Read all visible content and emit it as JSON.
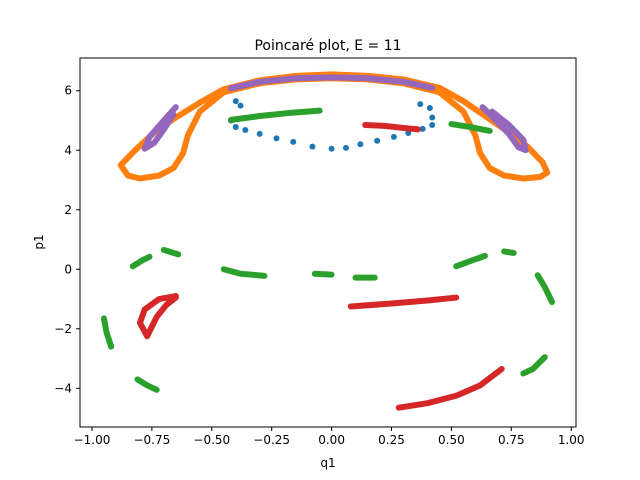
{
  "chart_data": {
    "type": "scatter",
    "title": "Poincaré plot, E = 11",
    "xlabel": "q1",
    "ylabel": "p1",
    "xlim": [
      -1.05,
      1.02
    ],
    "ylim": [
      -5.3,
      7.1
    ],
    "xticks": [
      "−1.00",
      "−0.75",
      "−0.50",
      "−0.25",
      "0.00",
      "0.25",
      "0.50",
      "0.75",
      "1.00"
    ],
    "xtick_values": [
      -1.0,
      -0.75,
      -0.5,
      -0.25,
      0.0,
      0.25,
      0.5,
      0.75,
      1.0
    ],
    "yticks": [
      "−4",
      "−2",
      "0",
      "2",
      "4",
      "6"
    ],
    "ytick_values": [
      -4,
      -2,
      0,
      2,
      4,
      6
    ],
    "grid": false,
    "series": [
      {
        "color": "#1f77b4",
        "points": [
          [
            -0.4,
            5.65
          ],
          [
            -0.38,
            5.5
          ],
          [
            -0.42,
            5.0
          ],
          [
            -0.4,
            4.78
          ],
          [
            -0.36,
            4.68
          ],
          [
            -0.3,
            4.55
          ],
          [
            -0.23,
            4.4
          ],
          [
            -0.16,
            4.28
          ],
          [
            -0.08,
            4.12
          ],
          [
            0.0,
            4.05
          ],
          [
            0.06,
            4.08
          ],
          [
            0.12,
            4.2
          ],
          [
            0.19,
            4.32
          ],
          [
            0.26,
            4.45
          ],
          [
            0.32,
            4.58
          ],
          [
            0.38,
            4.72
          ],
          [
            0.42,
            4.85
          ],
          [
            0.42,
            5.1
          ],
          [
            0.41,
            5.42
          ],
          [
            0.37,
            5.55
          ]
        ]
      },
      {
        "color": "#ff7f0e",
        "outer": [
          [
            -0.85,
            3.15
          ],
          [
            -0.88,
            3.5
          ],
          [
            -0.82,
            4.0
          ],
          [
            -0.74,
            4.6
          ],
          [
            -0.66,
            5.05
          ],
          [
            -0.55,
            5.6
          ],
          [
            -0.45,
            6.05
          ],
          [
            -0.3,
            6.35
          ],
          [
            -0.15,
            6.5
          ],
          [
            0.0,
            6.55
          ],
          [
            0.15,
            6.5
          ],
          [
            0.3,
            6.38
          ],
          [
            0.45,
            6.1
          ],
          [
            0.55,
            5.65
          ],
          [
            0.65,
            5.1
          ],
          [
            0.74,
            4.6
          ],
          [
            0.82,
            4.1
          ],
          [
            0.88,
            3.6
          ],
          [
            0.9,
            3.25
          ],
          [
            0.87,
            3.1
          ],
          [
            0.8,
            3.05
          ],
          [
            0.72,
            3.15
          ],
          [
            0.66,
            3.4
          ],
          [
            0.62,
            3.9
          ],
          [
            0.6,
            4.5
          ],
          [
            0.55,
            5.3
          ],
          [
            0.45,
            5.95
          ],
          [
            0.3,
            6.25
          ],
          [
            0.15,
            6.38
          ],
          [
            0.0,
            6.42
          ],
          [
            -0.15,
            6.38
          ],
          [
            -0.3,
            6.25
          ],
          [
            -0.45,
            5.95
          ],
          [
            -0.55,
            5.3
          ],
          [
            -0.6,
            4.5
          ],
          [
            -0.62,
            3.9
          ],
          [
            -0.66,
            3.4
          ],
          [
            -0.72,
            3.15
          ],
          [
            -0.8,
            3.05
          ],
          [
            -0.85,
            3.15
          ]
        ]
      },
      {
        "color": "#2ca02c",
        "segments": [
          [
            [
              -0.42,
              5.02
            ],
            [
              -0.3,
              5.15
            ],
            [
              -0.18,
              5.25
            ],
            [
              -0.05,
              5.33
            ]
          ],
          [
            [
              0.5,
              4.88
            ],
            [
              0.58,
              4.78
            ],
            [
              0.66,
              4.65
            ]
          ],
          [
            [
              -0.83,
              0.1
            ],
            [
              -0.79,
              0.3
            ],
            [
              -0.76,
              0.42
            ]
          ],
          [
            [
              -0.7,
              0.65
            ],
            [
              -0.66,
              0.55
            ],
            [
              -0.64,
              0.5
            ]
          ],
          [
            [
              -0.45,
              0.0
            ],
            [
              -0.38,
              -0.15
            ],
            [
              -0.28,
              -0.22
            ]
          ],
          [
            [
              -0.07,
              -0.15
            ],
            [
              0.0,
              -0.18
            ]
          ],
          [
            [
              0.1,
              -0.28
            ],
            [
              0.18,
              -0.28
            ]
          ],
          [
            [
              0.52,
              0.1
            ],
            [
              0.58,
              0.28
            ],
            [
              0.64,
              0.45
            ]
          ],
          [
            [
              0.72,
              0.6
            ],
            [
              0.76,
              0.55
            ]
          ],
          [
            [
              0.86,
              -0.2
            ],
            [
              0.89,
              -0.6
            ],
            [
              0.92,
              -1.1
            ]
          ],
          [
            [
              -0.95,
              -1.65
            ],
            [
              -0.94,
              -2.1
            ],
            [
              -0.92,
              -2.6
            ]
          ],
          [
            [
              -0.81,
              -3.7
            ],
            [
              -0.77,
              -3.9
            ],
            [
              -0.73,
              -4.05
            ]
          ],
          [
            [
              0.8,
              -3.5
            ],
            [
              0.84,
              -3.35
            ],
            [
              0.89,
              -2.95
            ]
          ]
        ]
      },
      {
        "color": "#d62728",
        "segments": [
          [
            [
              0.14,
              4.85
            ],
            [
              0.22,
              4.82
            ],
            [
              0.3,
              4.75
            ],
            [
              0.36,
              4.7
            ]
          ],
          [
            [
              -0.65,
              -0.9
            ],
            [
              -0.72,
              -1.0
            ],
            [
              -0.78,
              -1.35
            ],
            [
              -0.8,
              -1.8
            ],
            [
              -0.77,
              -2.25
            ],
            [
              -0.73,
              -1.6
            ],
            [
              -0.69,
              -1.2
            ],
            [
              -0.65,
              -0.95
            ]
          ],
          [
            [
              0.08,
              -1.25
            ],
            [
              0.25,
              -1.15
            ],
            [
              0.4,
              -1.05
            ],
            [
              0.52,
              -0.95
            ]
          ],
          [
            [
              0.28,
              -4.65
            ],
            [
              0.4,
              -4.5
            ],
            [
              0.52,
              -4.25
            ],
            [
              0.62,
              -3.9
            ],
            [
              0.71,
              -3.35
            ]
          ]
        ]
      },
      {
        "color": "#9467bd",
        "segments": [
          [
            [
              -0.42,
              6.08
            ],
            [
              -0.3,
              6.3
            ],
            [
              -0.15,
              6.42
            ],
            [
              0.0,
              6.45
            ],
            [
              0.15,
              6.42
            ],
            [
              0.3,
              6.3
            ],
            [
              0.42,
              6.1
            ]
          ],
          [
            [
              -0.65,
              5.45
            ],
            [
              -0.7,
              5.0
            ],
            [
              -0.76,
              4.45
            ],
            [
              -0.78,
              4.05
            ],
            [
              -0.74,
              4.25
            ],
            [
              -0.7,
              4.7
            ],
            [
              -0.66,
              5.2
            ]
          ],
          [
            [
              0.63,
              5.45
            ],
            [
              0.68,
              5.05
            ],
            [
              0.74,
              4.55
            ],
            [
              0.78,
              4.1
            ],
            [
              0.81,
              4.0
            ],
            [
              0.8,
              4.35
            ],
            [
              0.74,
              4.85
            ],
            [
              0.67,
              5.3
            ]
          ]
        ]
      }
    ]
  }
}
